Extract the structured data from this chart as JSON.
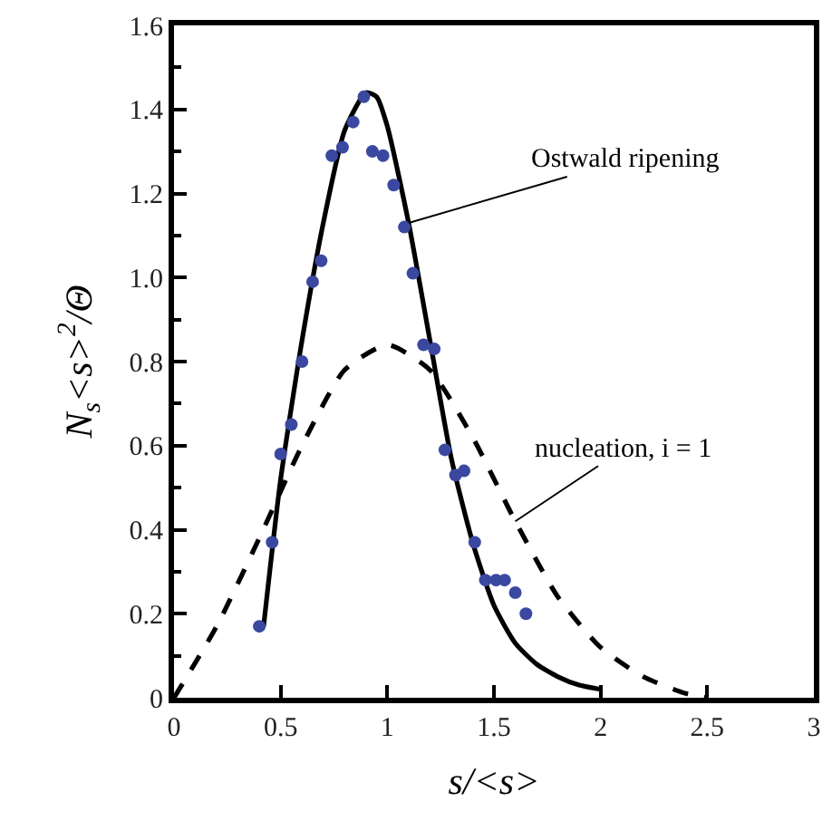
{
  "chart_data": {
    "type": "scatter",
    "xlabel": "s/<s>",
    "ylabel": "N$_{s}$<s>$^{2}$/Θ",
    "xlim": [
      0,
      3
    ],
    "ylim": [
      0,
      1.6
    ],
    "xticks": [
      0,
      0.5,
      1,
      1.5,
      2,
      2.5,
      3
    ],
    "yticks": [
      0,
      0.2,
      0.4,
      0.6,
      0.8,
      {
        "value": 1.0,
        "label": "1.0"
      },
      1.2,
      1.4,
      1.6
    ],
    "series": [
      {
        "marker": "circle",
        "color": "#3b48a0",
        "x": [
          0.4,
          0.46,
          0.5,
          0.55,
          0.6,
          0.65,
          0.69,
          0.74,
          0.79,
          0.84,
          0.89,
          0.93,
          0.98,
          1.03,
          1.08,
          1.12,
          1.17,
          1.22,
          1.27,
          1.32,
          1.36,
          1.41,
          1.46,
          1.51,
          1.55,
          1.6,
          1.65
        ],
        "values": [
          0.17,
          0.37,
          0.58,
          0.65,
          0.8,
          0.99,
          1.04,
          1.29,
          1.31,
          1.37,
          1.43,
          1.3,
          1.29,
          1.22,
          1.12,
          1.01,
          0.84,
          0.83,
          0.59,
          0.53,
          0.54,
          0.37,
          0.28,
          0.28,
          0.28,
          0.25,
          0.2
        ]
      },
      {
        "type": "line",
        "line_style": "solid",
        "color": "#000000",
        "x": [
          0.42,
          0.5,
          0.6,
          0.7,
          0.8,
          0.9,
          0.95,
          1.0,
          1.1,
          1.2,
          1.3,
          1.4,
          1.5,
          1.6,
          1.7,
          1.8,
          1.9,
          2.0
        ],
        "values": [
          0.17,
          0.52,
          0.85,
          1.13,
          1.35,
          1.44,
          1.43,
          1.36,
          1.13,
          0.85,
          0.57,
          0.37,
          0.22,
          0.13,
          0.08,
          0.05,
          0.03,
          0.02
        ]
      },
      {
        "type": "line",
        "line_style": "dashed",
        "color": "#000000",
        "x": [
          0,
          0.2,
          0.4,
          0.6,
          0.8,
          1.0,
          1.2,
          1.4,
          1.6,
          1.8,
          2.0,
          2.2,
          2.4,
          2.5
        ],
        "values": [
          0,
          0.17,
          0.38,
          0.6,
          0.78,
          0.84,
          0.78,
          0.62,
          0.42,
          0.24,
          0.12,
          0.05,
          0.01,
          0
        ]
      }
    ],
    "annotations": [
      {
        "text": "Ostwald ripening",
        "x": 1.1,
        "y": 1.13
      },
      {
        "text": "nucleation, i = 1",
        "x": 1.6,
        "y": 0.42
      }
    ]
  }
}
